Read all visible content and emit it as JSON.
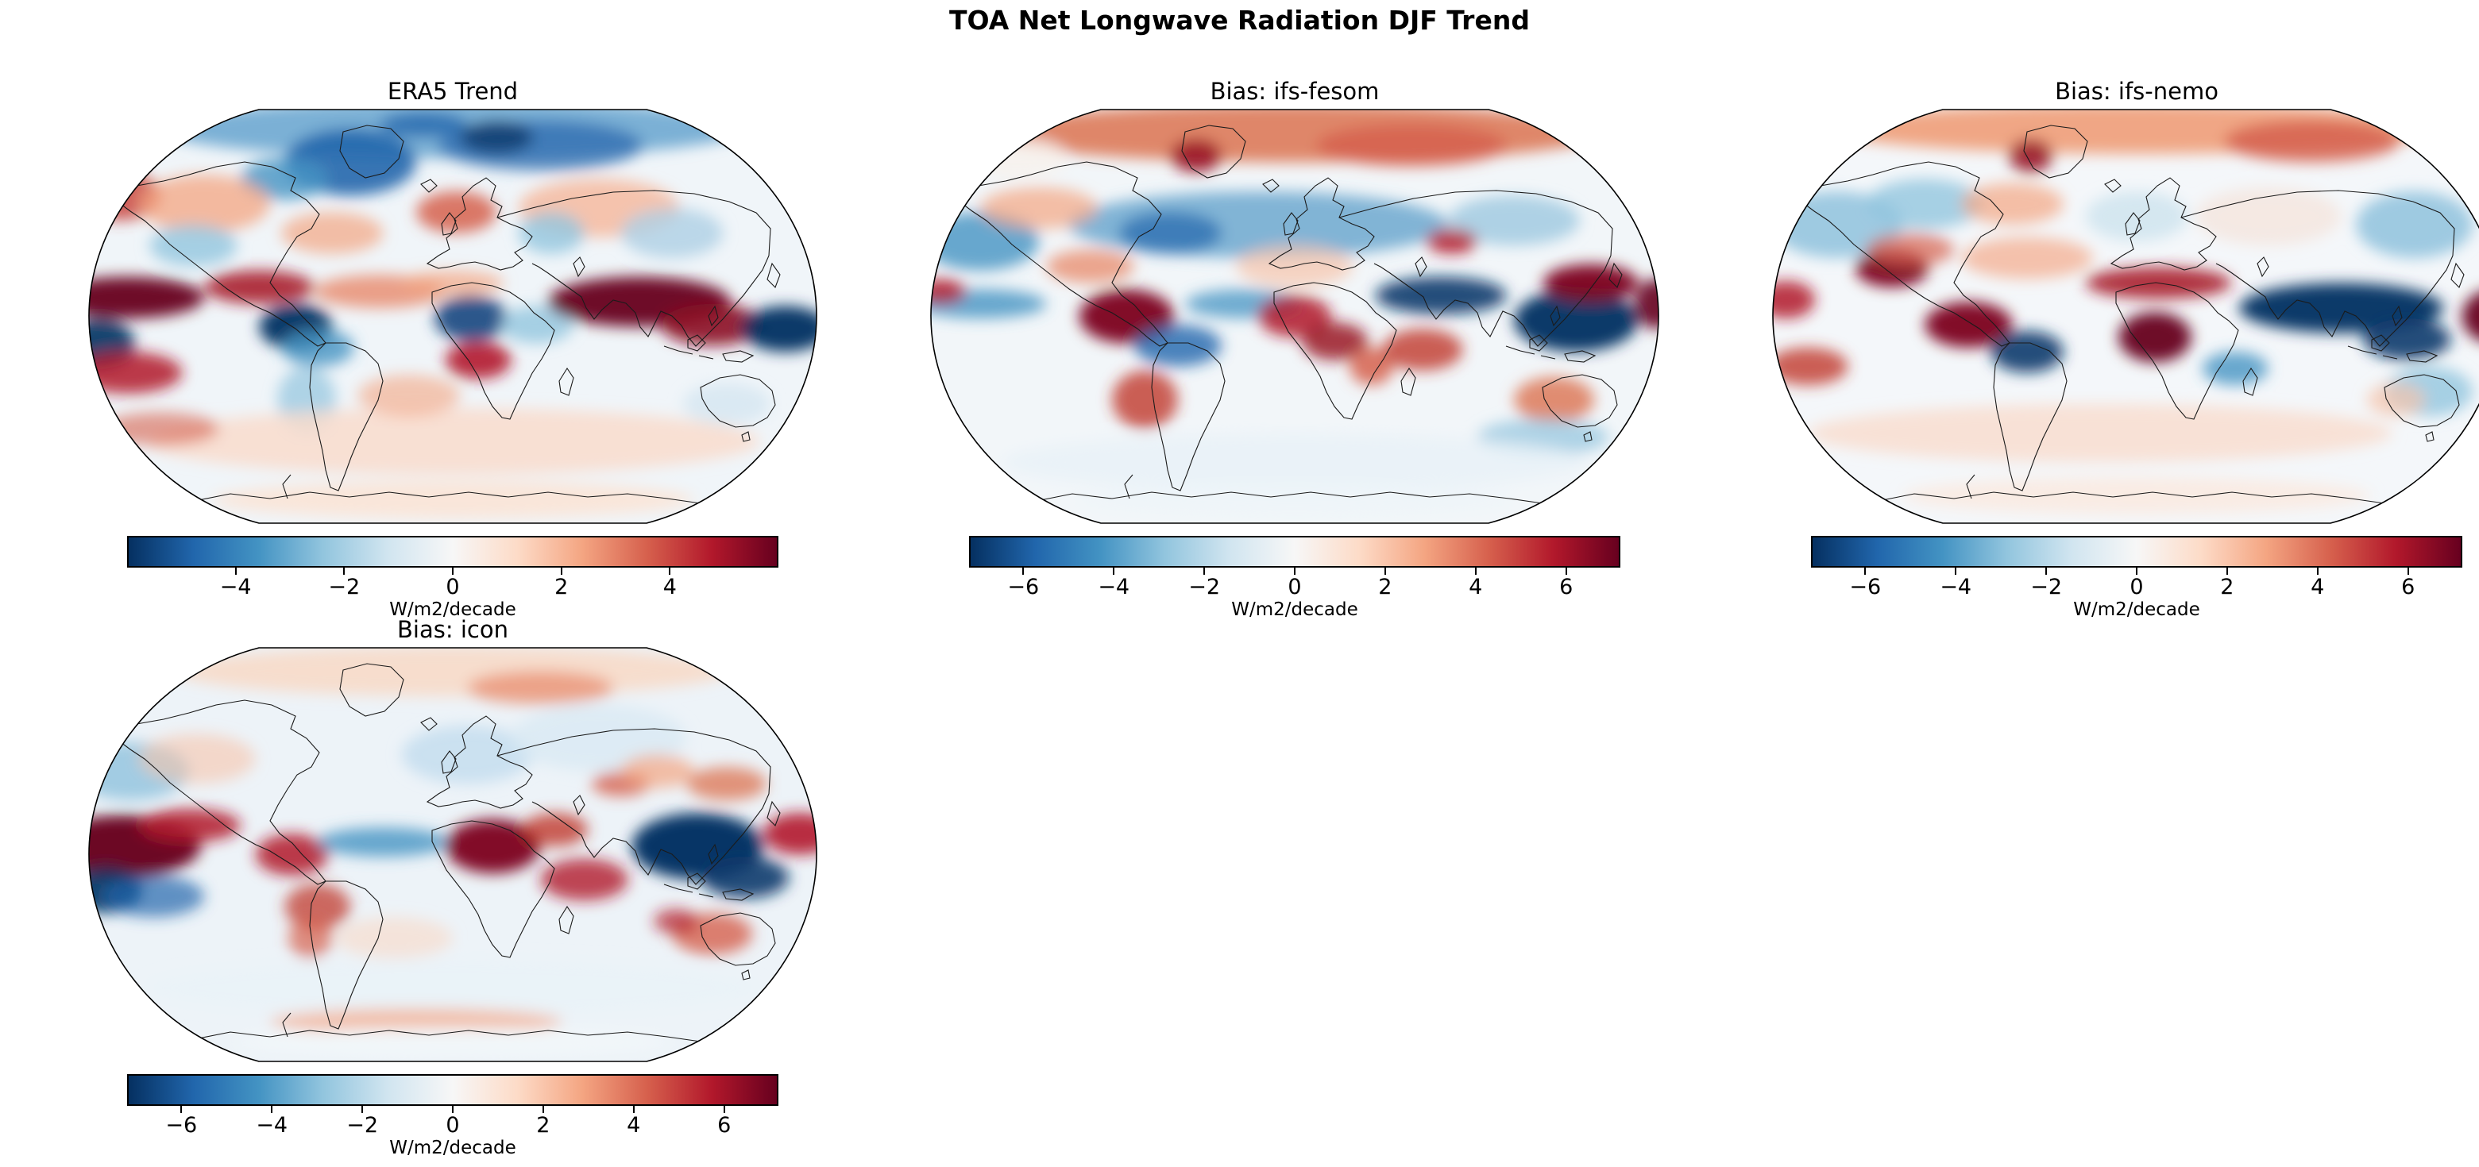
{
  "figure": {
    "title": "TOA Net Longwave Radiation DJF Trend"
  },
  "colors": {
    "background": "#ffffff",
    "text": "#000000",
    "map_outline": "#000000",
    "coastline": "#1b1b1b",
    "cmap_name": "RdBu_r",
    "cmap_stops": [
      "#053061",
      "#2166ac",
      "#4393c3",
      "#92c5de",
      "#d1e5f0",
      "#f7f7f7",
      "#fddbc7",
      "#f4a582",
      "#d6604d",
      "#b2182b",
      "#67001f"
    ]
  },
  "panels": [
    {
      "id": "era5-trend",
      "title": "ERA5 Trend",
      "base_color": "#f0f5f9",
      "colorbar": {
        "label": "W/m2/decade",
        "ticks": [
          -4,
          -2,
          0,
          2,
          4
        ],
        "vmin": -6,
        "vmax": 6
      },
      "blobs": [
        [
          0.5,
          0.05,
          0.4,
          0.07,
          "#6fa8d2",
          0.9
        ],
        [
          0.36,
          0.13,
          0.09,
          0.08,
          "#2166ac",
          0.9
        ],
        [
          0.27,
          0.17,
          0.06,
          0.05,
          "#4393c3",
          0.8
        ],
        [
          0.62,
          0.09,
          0.14,
          0.06,
          "#2f6eb0",
          0.8
        ],
        [
          0.56,
          0.07,
          0.05,
          0.04,
          "#053061",
          0.7
        ],
        [
          0.46,
          0.04,
          0.06,
          0.03,
          "#2166ac",
          0.8
        ],
        [
          0.045,
          0.21,
          0.055,
          0.06,
          "#c94741",
          0.85
        ],
        [
          0.16,
          0.23,
          0.09,
          0.07,
          "#f4a582",
          0.75
        ],
        [
          0.145,
          0.33,
          0.06,
          0.05,
          "#92c5de",
          0.8
        ],
        [
          0.335,
          0.3,
          0.07,
          0.05,
          "#f4a582",
          0.7
        ],
        [
          0.505,
          0.25,
          0.055,
          0.05,
          "#d6604d",
          0.85
        ],
        [
          0.7,
          0.24,
          0.11,
          0.07,
          "#f6b79a",
          0.8
        ],
        [
          0.635,
          0.3,
          0.045,
          0.05,
          "#92c5de",
          0.8
        ],
        [
          0.8,
          0.3,
          0.07,
          0.06,
          "#aecfe5",
          0.8
        ],
        [
          0.055,
          0.455,
          0.105,
          0.05,
          "#67001f",
          0.95
        ],
        [
          0.235,
          0.43,
          0.075,
          0.04,
          "#a91c2e",
          0.9
        ],
        [
          0.4,
          0.44,
          0.09,
          0.04,
          "#e8896a",
          0.8
        ],
        [
          0.5,
          0.42,
          0.07,
          0.03,
          "#f4a582",
          0.7
        ],
        [
          0.285,
          0.525,
          0.05,
          0.055,
          "#053061",
          0.95
        ],
        [
          0.015,
          0.565,
          0.05,
          0.06,
          "#053061",
          0.9
        ],
        [
          0.055,
          0.635,
          0.075,
          0.05,
          "#b2182b",
          0.85
        ],
        [
          0.315,
          0.575,
          0.05,
          0.045,
          "#4393c3",
          0.8
        ],
        [
          0.3,
          0.7,
          0.04,
          0.08,
          "#92c5de",
          0.7
        ],
        [
          0.525,
          0.505,
          0.05,
          0.055,
          "#14477f",
          0.9
        ],
        [
          0.535,
          0.605,
          0.045,
          0.045,
          "#b2182b",
          0.9
        ],
        [
          0.615,
          0.52,
          0.05,
          0.045,
          "#92c5de",
          0.8
        ],
        [
          0.755,
          0.465,
          0.125,
          0.06,
          "#67001f",
          0.95
        ],
        [
          0.855,
          0.52,
          0.07,
          0.05,
          "#8c0a24",
          0.9
        ],
        [
          0.955,
          0.53,
          0.06,
          0.055,
          "#053061",
          0.95
        ],
        [
          0.875,
          0.71,
          0.06,
          0.05,
          "#d8e8f2",
          0.9
        ],
        [
          0.5,
          0.8,
          0.42,
          0.08,
          "#f9dccd",
          0.85
        ],
        [
          0.44,
          0.69,
          0.07,
          0.05,
          "#f4a582",
          0.6
        ],
        [
          0.1,
          0.77,
          0.08,
          0.04,
          "#d6604d",
          0.6
        ],
        [
          0.5,
          0.94,
          0.33,
          0.045,
          "#fbe4d6",
          0.9
        ]
      ]
    },
    {
      "id": "bias-ifs-fesom",
      "title": "Bias: ifs-fesom",
      "base_color": "#f2f6f9",
      "colorbar": {
        "label": "W/m2/decade",
        "ticks": [
          -6,
          -4,
          -2,
          0,
          2,
          4,
          6
        ],
        "vmin": -7.2,
        "vmax": 7.2
      },
      "blobs": [
        [
          0.5,
          0.06,
          0.42,
          0.07,
          "#dd7a5a",
          0.9
        ],
        [
          0.365,
          0.115,
          0.035,
          0.04,
          "#9a1527",
          0.9
        ],
        [
          0.66,
          0.09,
          0.13,
          0.05,
          "#d6604d",
          0.85
        ],
        [
          0.12,
          0.12,
          0.07,
          0.05,
          "#f7f1ec",
          0.8
        ],
        [
          0.45,
          0.28,
          0.26,
          0.08,
          "#5b9ec9",
          0.75
        ],
        [
          0.07,
          0.32,
          0.08,
          0.07,
          "#4393c3",
          0.8
        ],
        [
          0.33,
          0.3,
          0.07,
          0.05,
          "#2166ac",
          0.7
        ],
        [
          0.15,
          0.24,
          0.08,
          0.05,
          "#f4a582",
          0.7
        ],
        [
          0.22,
          0.38,
          0.06,
          0.04,
          "#e8896a",
          0.75
        ],
        [
          0.8,
          0.27,
          0.09,
          0.06,
          "#9ec8e0",
          0.8
        ],
        [
          0.07,
          0.47,
          0.09,
          0.035,
          "#4393c3",
          0.8
        ],
        [
          0.015,
          0.44,
          0.035,
          0.03,
          "#b2182b",
          0.85
        ],
        [
          0.27,
          0.5,
          0.065,
          0.065,
          "#7c0520",
          0.95
        ],
        [
          0.34,
          0.57,
          0.06,
          0.05,
          "#2166ac",
          0.8
        ],
        [
          0.43,
          0.47,
          0.08,
          0.035,
          "#4393c3",
          0.75
        ],
        [
          0.5,
          0.38,
          0.08,
          0.05,
          "#f6c4ab",
          0.7
        ],
        [
          0.5,
          0.5,
          0.05,
          0.05,
          "#b2182b",
          0.85
        ],
        [
          0.555,
          0.56,
          0.045,
          0.045,
          "#9a1527",
          0.85
        ],
        [
          0.605,
          0.62,
          0.03,
          0.045,
          "#d6604d",
          0.85
        ],
        [
          0.675,
          0.58,
          0.055,
          0.05,
          "#c0392b",
          0.8
        ],
        [
          0.7,
          0.45,
          0.09,
          0.045,
          "#0b3a6d",
          0.9
        ],
        [
          0.715,
          0.32,
          0.035,
          0.03,
          "#b2182b",
          0.85
        ],
        [
          0.885,
          0.51,
          0.085,
          0.075,
          "#053061",
          0.95
        ],
        [
          0.905,
          0.42,
          0.065,
          0.045,
          "#7c0520",
          0.95
        ],
        [
          0.995,
          0.47,
          0.03,
          0.06,
          "#67001f",
          0.9
        ],
        [
          0.855,
          0.7,
          0.055,
          0.055,
          "#dd7a5a",
          0.85
        ],
        [
          0.84,
          0.79,
          0.09,
          0.045,
          "#92c5de",
          0.7
        ],
        [
          0.295,
          0.7,
          0.045,
          0.07,
          "#c0392b",
          0.8
        ],
        [
          0.5,
          0.85,
          0.4,
          0.07,
          "#e8f1f7",
          0.8
        ],
        [
          0.5,
          0.94,
          0.3,
          0.04,
          "#eef5f9",
          0.8
        ]
      ]
    },
    {
      "id": "bias-ifs-nemo",
      "title": "Bias: ifs-nemo",
      "base_color": "#f4f7fa",
      "colorbar": {
        "label": "W/m2/decade",
        "ticks": [
          -6,
          -4,
          -2,
          0,
          2,
          4,
          6
        ],
        "vmin": -7.2,
        "vmax": 7.2
      },
      "blobs": [
        [
          0.5,
          0.05,
          0.42,
          0.06,
          "#ef9d78",
          0.9
        ],
        [
          0.74,
          0.08,
          0.12,
          0.05,
          "#d6604d",
          0.85
        ],
        [
          0.355,
          0.115,
          0.03,
          0.04,
          "#9a1527",
          0.9
        ],
        [
          0.09,
          0.28,
          0.09,
          0.08,
          "#8fc2dd",
          0.85
        ],
        [
          0.21,
          0.23,
          0.08,
          0.06,
          "#92c5de",
          0.8
        ],
        [
          0.33,
          0.23,
          0.07,
          0.05,
          "#f4a582",
          0.7
        ],
        [
          0.5,
          0.26,
          0.07,
          0.06,
          "#d1e5f0",
          0.9
        ],
        [
          0.88,
          0.28,
          0.08,
          0.08,
          "#8fc2dd",
          0.85
        ],
        [
          0.68,
          0.26,
          0.1,
          0.07,
          "#f5e3da",
          0.7
        ],
        [
          0.165,
          0.385,
          0.05,
          0.045,
          "#7c0520",
          0.95
        ],
        [
          0.19,
          0.34,
          0.06,
          0.04,
          "#d6604d",
          0.7
        ],
        [
          0.35,
          0.36,
          0.09,
          0.05,
          "#f4a582",
          0.65
        ],
        [
          0.53,
          0.42,
          0.1,
          0.038,
          "#a91c2e",
          0.9
        ],
        [
          0.525,
          0.55,
          0.05,
          0.06,
          "#67001f",
          0.95
        ],
        [
          0.27,
          0.52,
          0.06,
          0.055,
          "#7c0520",
          0.95
        ],
        [
          0.35,
          0.585,
          0.05,
          0.05,
          "#0b3a6d",
          0.9
        ],
        [
          0.78,
          0.48,
          0.14,
          0.06,
          "#053061",
          0.95
        ],
        [
          0.87,
          0.555,
          0.06,
          0.05,
          "#0b3a6d",
          0.9
        ],
        [
          0.99,
          0.5,
          0.045,
          0.065,
          "#67001f",
          0.95
        ],
        [
          0.02,
          0.46,
          0.04,
          0.045,
          "#b2182b",
          0.85
        ],
        [
          0.05,
          0.62,
          0.055,
          0.045,
          "#c0392b",
          0.8
        ],
        [
          0.635,
          0.625,
          0.045,
          0.04,
          "#4393c3",
          0.8
        ],
        [
          0.9,
          0.68,
          0.06,
          0.06,
          "#92c5de",
          0.8
        ],
        [
          0.855,
          0.7,
          0.04,
          0.04,
          "#f6c4ab",
          0.7
        ],
        [
          0.45,
          0.78,
          0.4,
          0.07,
          "#f9dccd",
          0.8
        ],
        [
          0.5,
          0.93,
          0.32,
          0.045,
          "#faeae1",
          0.85
        ]
      ]
    },
    {
      "id": "bias-icon",
      "title": "Bias: icon",
      "base_color": "#edf3f8",
      "colorbar": {
        "label": "W/m2/decade",
        "ticks": [
          -6,
          -4,
          -2,
          0,
          2,
          4,
          6
        ],
        "vmin": -7.2,
        "vmax": 7.2
      },
      "blobs": [
        [
          0.5,
          0.06,
          0.38,
          0.06,
          "#f8d9c6",
          0.85
        ],
        [
          0.62,
          0.1,
          0.1,
          0.04,
          "#e8896a",
          0.7
        ],
        [
          0.06,
          0.3,
          0.08,
          0.07,
          "#8fc2dd",
          0.8
        ],
        [
          0.15,
          0.27,
          0.08,
          0.06,
          "#f6c4ab",
          0.6
        ],
        [
          0.52,
          0.26,
          0.09,
          0.07,
          "#c6dff0",
          0.9
        ],
        [
          0.7,
          0.22,
          0.12,
          0.08,
          "#d9eaf4",
          0.8
        ],
        [
          0.73,
          0.33,
          0.04,
          0.03,
          "#d6604d",
          0.8
        ],
        [
          0.78,
          0.3,
          0.05,
          0.04,
          "#f4a582",
          0.7
        ],
        [
          0.05,
          0.48,
          0.105,
          0.075,
          "#67001f",
          0.97
        ],
        [
          0.14,
          0.43,
          0.07,
          0.04,
          "#b2182b",
          0.85
        ],
        [
          0.025,
          0.585,
          0.05,
          0.055,
          "#053061",
          0.9
        ],
        [
          0.09,
          0.6,
          0.07,
          0.05,
          "#2166ac",
          0.7
        ],
        [
          0.28,
          0.5,
          0.05,
          0.05,
          "#b2182b",
          0.85
        ],
        [
          0.315,
          0.625,
          0.045,
          0.055,
          "#c0392b",
          0.75
        ],
        [
          0.305,
          0.7,
          0.03,
          0.05,
          "#d6604d",
          0.7
        ],
        [
          0.405,
          0.47,
          0.09,
          0.035,
          "#4393c3",
          0.8
        ],
        [
          0.555,
          0.48,
          0.065,
          0.065,
          "#7c0520",
          0.95
        ],
        [
          0.64,
          0.44,
          0.045,
          0.04,
          "#c0392b",
          0.8
        ],
        [
          0.68,
          0.56,
          0.06,
          0.05,
          "#b2182b",
          0.8
        ],
        [
          0.835,
          0.48,
          0.09,
          0.08,
          "#053061",
          0.97
        ],
        [
          0.9,
          0.555,
          0.06,
          0.05,
          "#0b3a6d",
          0.9
        ],
        [
          0.875,
          0.33,
          0.055,
          0.04,
          "#dd7a5a",
          0.8
        ],
        [
          0.975,
          0.45,
          0.05,
          0.05,
          "#b2182b",
          0.9
        ],
        [
          0.855,
          0.69,
          0.055,
          0.05,
          "#d6604d",
          0.8
        ],
        [
          0.805,
          0.66,
          0.03,
          0.03,
          "#b2182b",
          0.7
        ],
        [
          0.5,
          0.82,
          0.42,
          0.07,
          "#eaf2f8",
          0.8
        ],
        [
          0.45,
          0.9,
          0.2,
          0.03,
          "#f4a582",
          0.7
        ],
        [
          0.5,
          0.95,
          0.3,
          0.035,
          "#f2f7fa",
          0.9
        ],
        [
          0.42,
          0.7,
          0.08,
          0.05,
          "#f8d9c6",
          0.6
        ]
      ]
    }
  ],
  "chart_data": [
    {
      "type": "heatmap",
      "title": "ERA5 Trend",
      "projection": "Robinson world map",
      "units": "W/m2/decade",
      "colormap": "RdBu_r",
      "vmin": -6,
      "vmax": 6,
      "colorbar_ticks": [
        -4,
        -2,
        0,
        2,
        4
      ],
      "pattern_summary": "Strong positive (red, ~+6) trend along the equatorial east Pacific, Caribbean and a very large maximum from the Bay of Bengal across the Maritime Continent; strong negative (blue, ~-6) centers off Peru, over the Congo basin, central Indian Ocean and west Pacific east of New Guinea; blue Arctic, Greenland and Siberian coast; red Europe; weak positive band over southern mid-latitudes and Antarctica."
    },
    {
      "type": "heatmap",
      "title": "Bias: ifs-fesom",
      "projection": "Robinson world map",
      "units": "W/m2/decade",
      "colormap": "RdBu_r",
      "vmin": -7.2,
      "vmax": 7.2,
      "colorbar_ticks": [
        -6,
        -4,
        -2,
        0,
        2,
        4,
        6
      ],
      "pattern_summary": "Positive (red) bias across the Arctic, Greenland and northern Siberia; negative (blue) band over northern mid-latitude oceans and Europe; strong negative over the west Pacific warm pool and north Indian Ocean; strong positive over Peru/Amazon, tropical Africa, Madagascar region, Argentina, Australia and the central Pacific near the dateline."
    },
    {
      "type": "heatmap",
      "title": "Bias: ifs-nemo",
      "projection": "Robinson world map",
      "units": "W/m2/decade",
      "colormap": "RdBu_r",
      "vmin": -7.2,
      "vmax": 7.2,
      "colorbar_ticks": [
        -6,
        -4,
        -2,
        0,
        2,
        4,
        6
      ],
      "pattern_summary": "Positive (red) bias over the Arctic rim, Mexico, the Sahel, Congo and Amazon basins; strong negative (blue) band across the Indian Ocean and Maritime Continent into the west Pacific; strong positive at both equatorial Pacific edges; cool patches over the North Pacific, Canada, Europe and east Asia; weak positive southern mid-latitudes."
    },
    {
      "type": "heatmap",
      "title": "Bias: icon",
      "projection": "Robinson world map",
      "units": "W/m2/decade",
      "colormap": "RdBu_r",
      "vmin": -7.2,
      "vmax": 7.2,
      "colorbar_ticks": [
        -6,
        -4,
        -2,
        0,
        2,
        4,
        6
      ],
      "pattern_summary": "Strong positive (red) bias over the equatorial east Pacific, East Africa/Arabian Sea/Indian Ocean and northwest Pacific near Japan; very strong negative (navy) over the Maritime Continent and west Pacific warm pool; weak negative over Europe, the equatorial Atlantic and northern oceans; scattered positive over Australia and South America."
    }
  ]
}
